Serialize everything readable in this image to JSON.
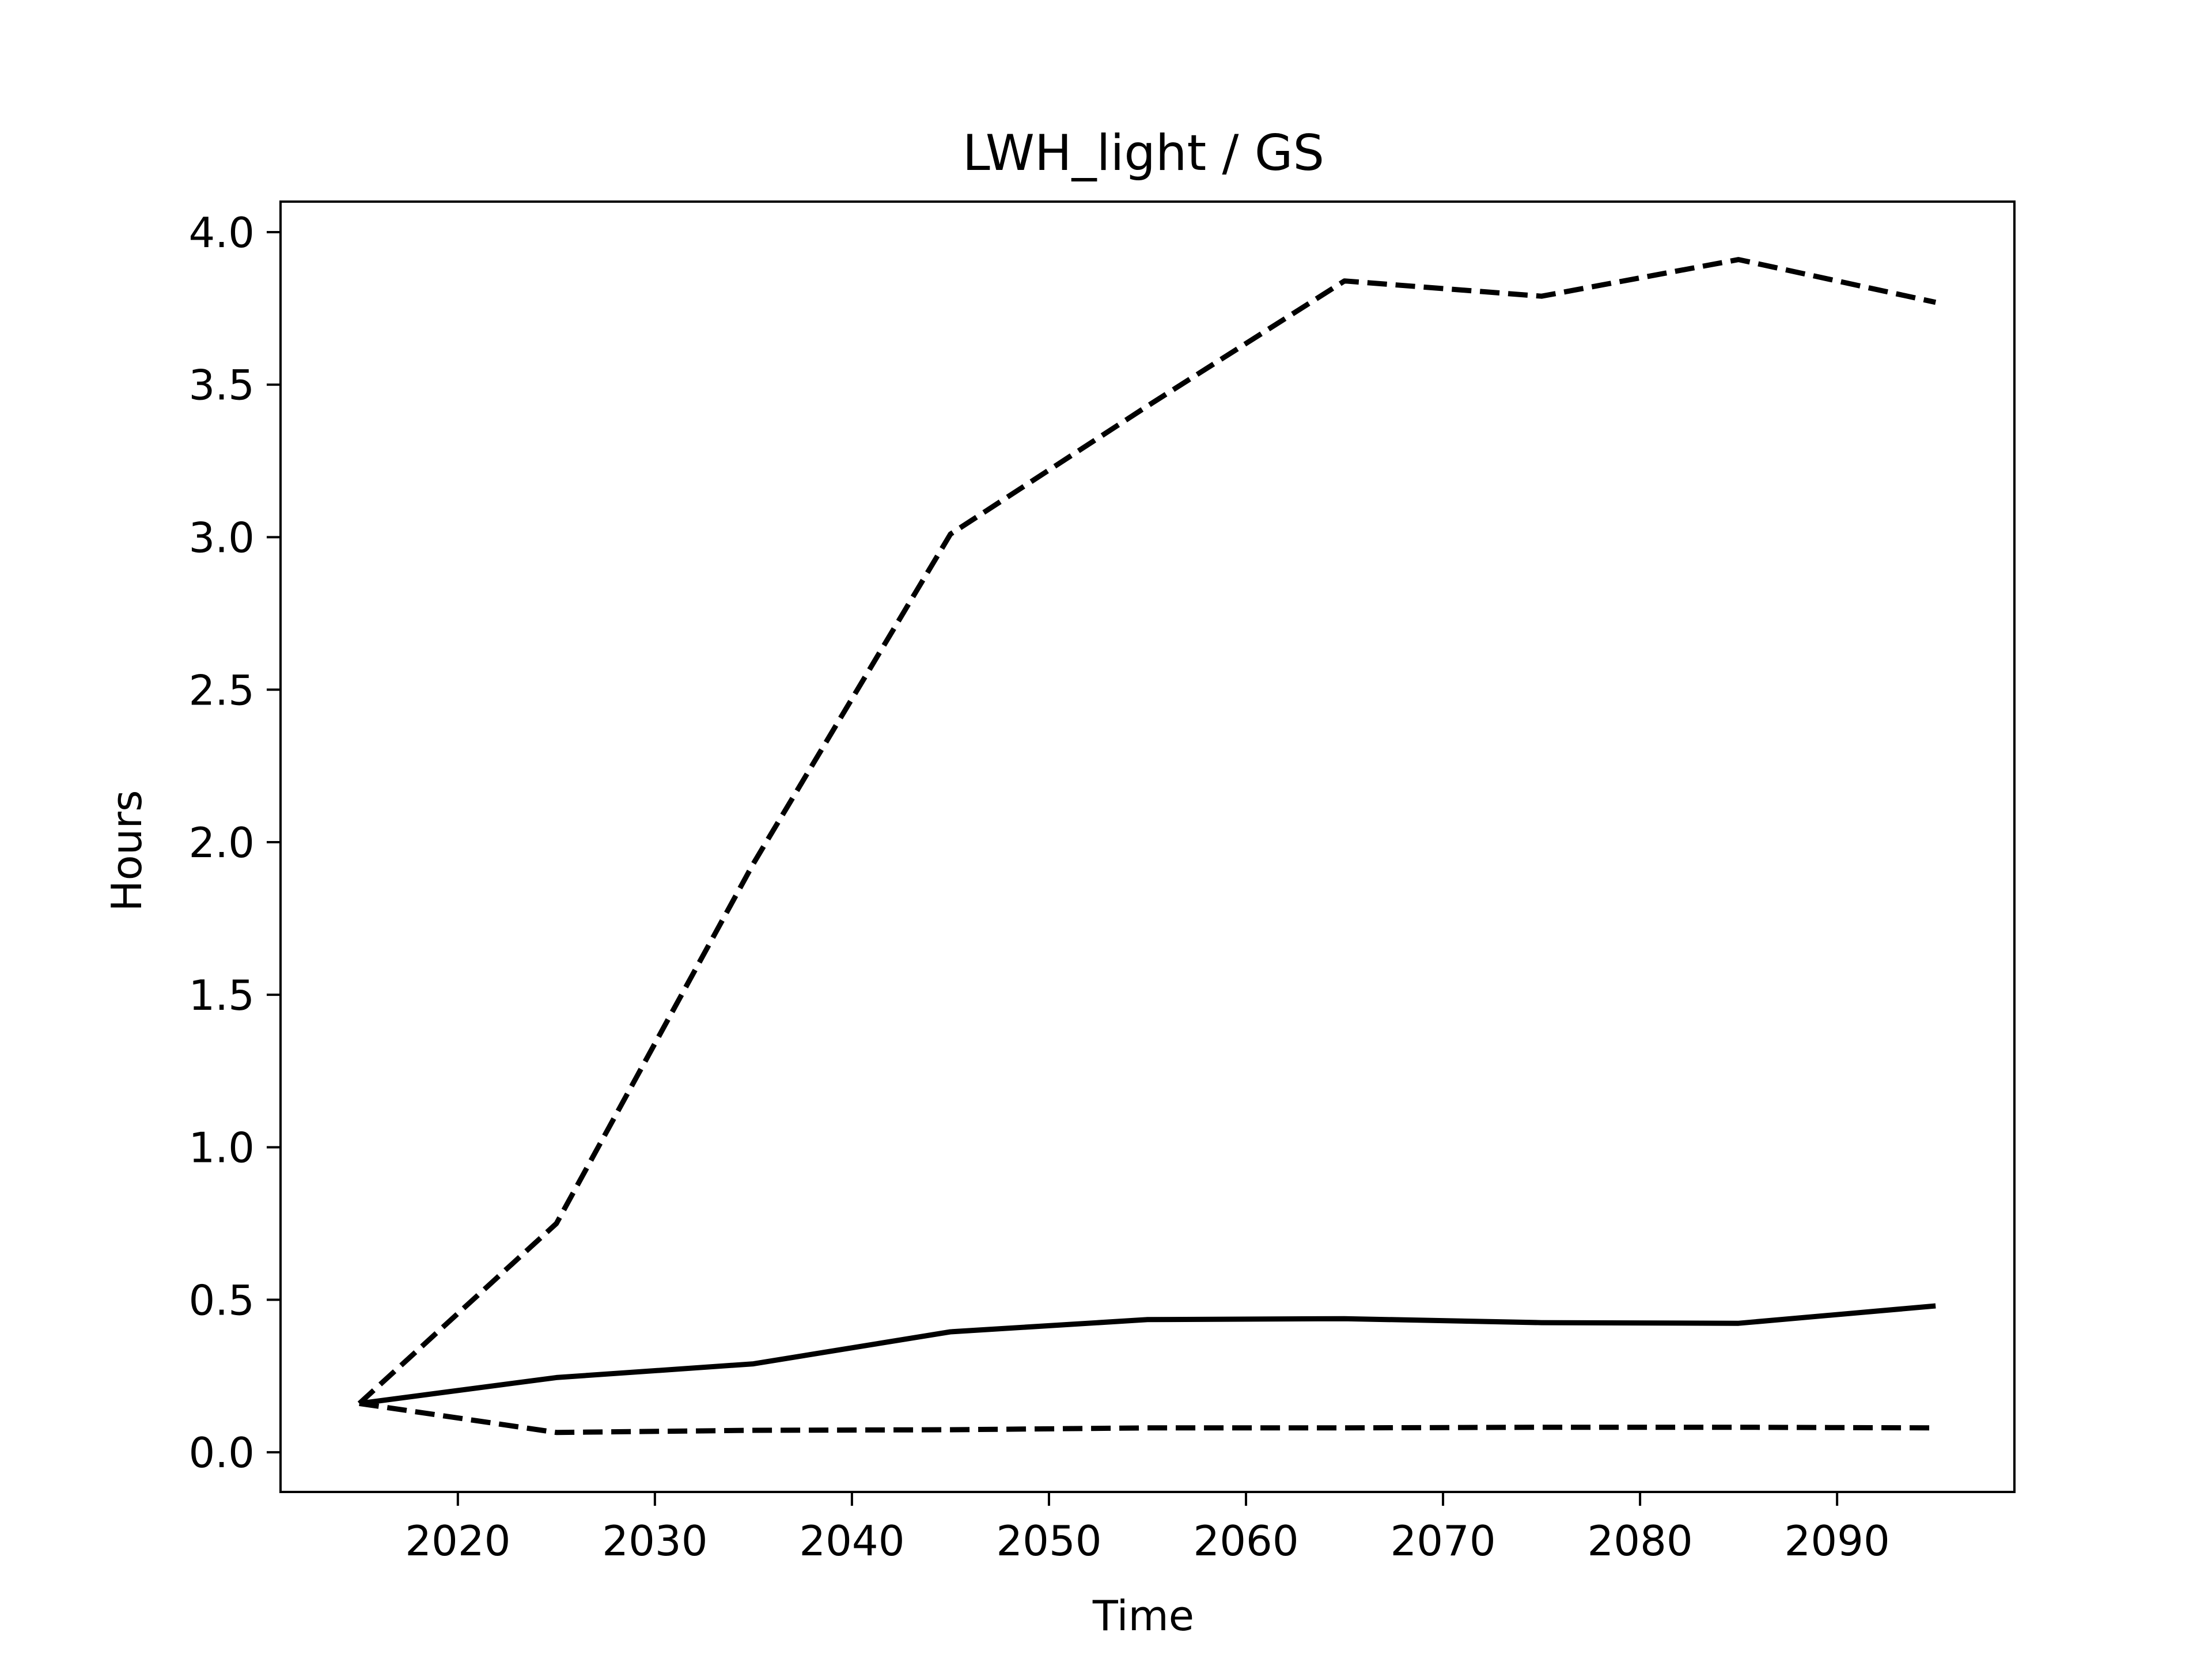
{
  "chart_data": {
    "type": "line",
    "title": "LWH_light / GS",
    "xlabel": "Time",
    "ylabel": "Hours",
    "xlim": [
      2011,
      2099
    ],
    "ylim": [
      -0.13,
      4.1
    ],
    "xticks": [
      2020,
      2030,
      2040,
      2050,
      2060,
      2070,
      2080,
      2090
    ],
    "yticks": [
      0.0,
      0.5,
      1.0,
      1.5,
      2.0,
      2.5,
      3.0,
      3.5,
      4.0
    ],
    "ytick_labels": [
      "0.0",
      "0.5",
      "1.0",
      "1.5",
      "2.0",
      "2.5",
      "3.0",
      "3.5",
      "4.0"
    ],
    "grid": false,
    "x": [
      2015,
      2025,
      2035,
      2045,
      2055,
      2065,
      2075,
      2085,
      2095
    ],
    "series": [
      {
        "style": "dashed",
        "color": "#000000",
        "values": [
          0.16,
          0.75,
          1.93,
          3.01,
          3.43,
          3.84,
          3.79,
          3.91,
          3.77
        ]
      },
      {
        "style": "solid",
        "color": "#000000",
        "values": [
          0.16,
          0.245,
          0.29,
          0.395,
          0.435,
          0.438,
          0.425,
          0.423,
          0.48
        ]
      },
      {
        "style": "dashed",
        "color": "#000000",
        "values": [
          0.16,
          0.065,
          0.072,
          0.074,
          0.08,
          0.08,
          0.082,
          0.082,
          0.08
        ]
      }
    ]
  }
}
